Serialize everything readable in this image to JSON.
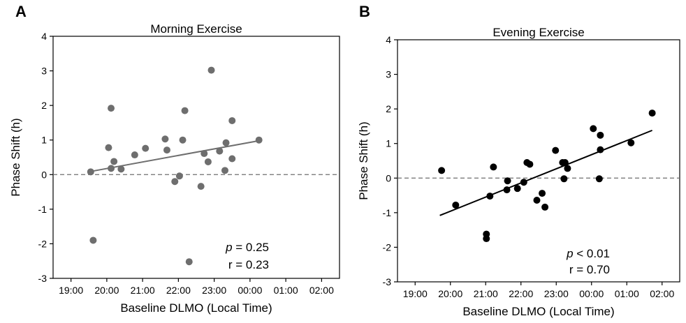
{
  "chart_data": [
    {
      "panel": "A",
      "type": "scatter",
      "title": "Morning Exercise",
      "xlabel": "Baseline DLMO (Local Time)",
      "ylabel": "Phase Shift (h)",
      "ylim": [
        -3,
        4
      ],
      "yticks": [
        "-3",
        "-2",
        "-1",
        "0",
        "1",
        "2",
        "3",
        "4"
      ],
      "xlim": [
        18.5,
        26.5
      ],
      "xticks": [
        {
          "value": 19,
          "label": "19:00"
        },
        {
          "value": 20,
          "label": "20:00"
        },
        {
          "value": 21,
          "label": "21:00"
        },
        {
          "value": 22,
          "label": "22:00"
        },
        {
          "value": 23,
          "label": "23:00"
        },
        {
          "value": 24,
          "label": "00:00"
        },
        {
          "value": 25,
          "label": "01:00"
        },
        {
          "value": 26,
          "label": "02:00"
        }
      ],
      "point_color": "#6e6e6e",
      "line_color": "#6e6e6e",
      "zero_line": "dashed",
      "points": [
        {
          "x": 19.55,
          "y": 0.08
        },
        {
          "x": 19.62,
          "y": -1.9
        },
        {
          "x": 20.05,
          "y": 0.78
        },
        {
          "x": 20.12,
          "y": 1.92
        },
        {
          "x": 20.12,
          "y": 0.18
        },
        {
          "x": 20.2,
          "y": 0.38
        },
        {
          "x": 20.4,
          "y": 0.16
        },
        {
          "x": 20.78,
          "y": 0.57
        },
        {
          "x": 21.08,
          "y": 0.76
        },
        {
          "x": 21.63,
          "y": 1.03
        },
        {
          "x": 21.68,
          "y": 0.71
        },
        {
          "x": 21.9,
          "y": -0.2
        },
        {
          "x": 22.03,
          "y": -0.04
        },
        {
          "x": 22.12,
          "y": 1.0
        },
        {
          "x": 22.18,
          "y": 1.85
        },
        {
          "x": 22.3,
          "y": -2.52
        },
        {
          "x": 22.63,
          "y": -0.34
        },
        {
          "x": 22.72,
          "y": 0.61
        },
        {
          "x": 22.83,
          "y": 0.37
        },
        {
          "x": 22.92,
          "y": 3.02
        },
        {
          "x": 23.15,
          "y": 0.68
        },
        {
          "x": 23.3,
          "y": 0.12
        },
        {
          "x": 23.33,
          "y": 0.92
        },
        {
          "x": 23.5,
          "y": 1.56
        },
        {
          "x": 23.5,
          "y": 0.46
        },
        {
          "x": 24.25,
          "y": 1.0
        }
      ],
      "fit": {
        "x1": 19.6,
        "y1": 0.1,
        "x2": 24.25,
        "y2": 0.98
      },
      "stats": {
        "p_symbol": "p",
        "p_text": "= 0.25",
        "r_text": "r = 0.23"
      }
    },
    {
      "panel": "B",
      "type": "scatter",
      "title": "Evening Exercise",
      "xlabel": "Baseline DLMO (Local Time)",
      "ylabel": "Phase Shift (h)",
      "ylim": [
        -3,
        4
      ],
      "yticks": [
        "-3",
        "-2",
        "-1",
        "0",
        "1",
        "2",
        "3",
        "4"
      ],
      "xlim": [
        18.5,
        26.5
      ],
      "xticks": [
        {
          "value": 19,
          "label": "19:00"
        },
        {
          "value": 20,
          "label": "20:00"
        },
        {
          "value": 21,
          "label": "21:00"
        },
        {
          "value": 22,
          "label": "22:00"
        },
        {
          "value": 23,
          "label": "23:00"
        },
        {
          "value": 24,
          "label": "00:00"
        },
        {
          "value": 25,
          "label": "01:00"
        },
        {
          "value": 26,
          "label": "02:00"
        }
      ],
      "point_color": "#000000",
      "line_color": "#000000",
      "zero_line": "dashed",
      "points": [
        {
          "x": 19.75,
          "y": 0.22
        },
        {
          "x": 20.15,
          "y": -0.78
        },
        {
          "x": 21.02,
          "y": -1.62
        },
        {
          "x": 21.02,
          "y": -1.75
        },
        {
          "x": 21.12,
          "y": -0.52
        },
        {
          "x": 21.22,
          "y": 0.32
        },
        {
          "x": 21.6,
          "y": -0.34
        },
        {
          "x": 21.62,
          "y": -0.08
        },
        {
          "x": 21.9,
          "y": -0.3
        },
        {
          "x": 22.08,
          "y": -0.12
        },
        {
          "x": 22.17,
          "y": 0.45
        },
        {
          "x": 22.25,
          "y": 0.4
        },
        {
          "x": 22.45,
          "y": -0.64
        },
        {
          "x": 22.6,
          "y": -0.44
        },
        {
          "x": 22.68,
          "y": -0.84
        },
        {
          "x": 22.98,
          "y": 0.8
        },
        {
          "x": 23.18,
          "y": 0.45
        },
        {
          "x": 23.22,
          "y": -0.02
        },
        {
          "x": 23.25,
          "y": 0.45
        },
        {
          "x": 23.32,
          "y": 0.28
        },
        {
          "x": 24.05,
          "y": 1.43
        },
        {
          "x": 24.25,
          "y": 1.24
        },
        {
          "x": 24.25,
          "y": 0.82
        },
        {
          "x": 24.22,
          "y": -0.02
        },
        {
          "x": 25.12,
          "y": 1.02
        },
        {
          "x": 25.72,
          "y": 1.88
        }
      ],
      "fit": {
        "x1": 19.7,
        "y1": -1.08,
        "x2": 25.72,
        "y2": 1.38
      },
      "stats": {
        "p_symbol": "p",
        "p_text": "< 0.01",
        "r_text": "r = 0.70"
      }
    }
  ]
}
